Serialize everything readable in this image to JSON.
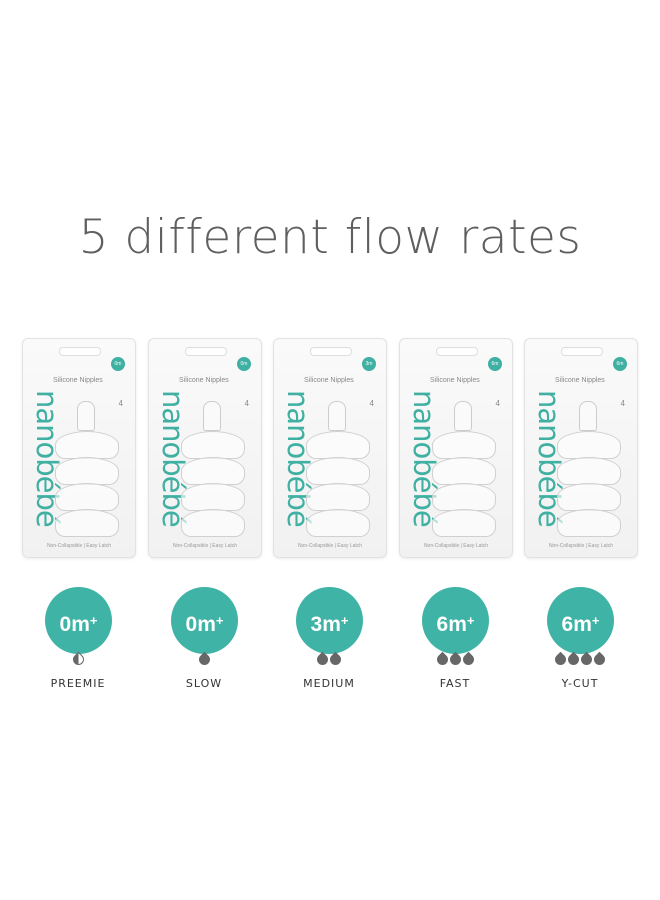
{
  "title": "5 different flow rates",
  "accent_color": "#3fb3a5",
  "package": {
    "brand": "nanobébé",
    "product": "Silicone Nipples",
    "count": "4",
    "footer": "Non-Collapsible | Easy Latch"
  },
  "items": [
    {
      "age": "0m",
      "suffix": "+",
      "drops": 1,
      "drop_style": "half-filled",
      "label": "PREEMIE"
    },
    {
      "age": "0m",
      "suffix": "+",
      "drops": 1,
      "drop_style": "filled",
      "label": "SLOW"
    },
    {
      "age": "3m",
      "suffix": "+",
      "drops": 2,
      "drop_style": "filled",
      "label": "MEDIUM"
    },
    {
      "age": "6m",
      "suffix": "+",
      "drops": 3,
      "drop_style": "filled",
      "label": "FAST"
    },
    {
      "age": "6m",
      "suffix": "+",
      "drops": 4,
      "drop_style": "filled",
      "label": "Y-CUT"
    }
  ]
}
